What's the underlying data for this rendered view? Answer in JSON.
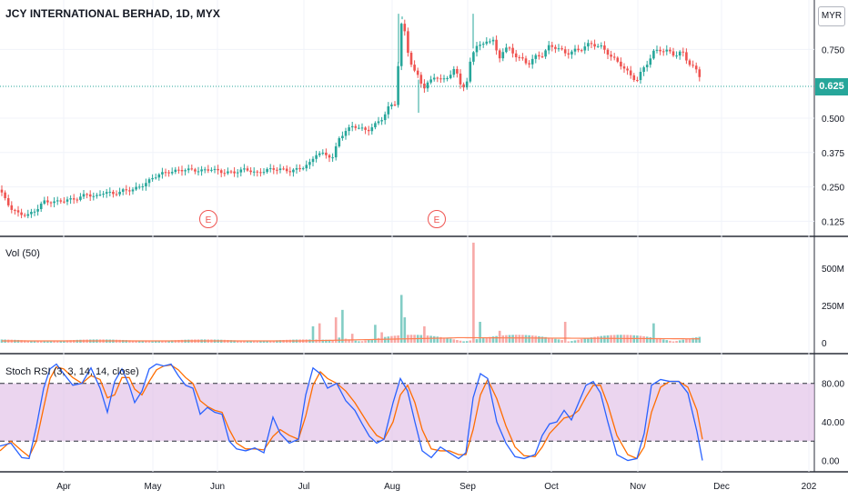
{
  "header": {
    "title": "JCY INTERNATIONAL BERHAD, 1D, MYX",
    "currency": "MYR"
  },
  "last_price_label": "0.625",
  "volume_label": "Vol (50)",
  "stoch_label": "Stoch RSI (3, 3, 14, 14, close)",
  "earnings_marker": "E",
  "colors": {
    "up": "#26a69a",
    "down": "#ef5350",
    "vol_ma": "#ff7f50",
    "k_line": "#2962ff",
    "d_line": "#ff6d00",
    "rsi_band": "#e1bee7"
  },
  "chart_data": [
    {
      "type": "candlestick",
      "title": "JCY INTERNATIONAL BERHAD, 1D, MYX",
      "x_ticks": [
        "Apr",
        "May",
        "Jun",
        "Jul",
        "Aug",
        "Sep",
        "Oct",
        "Nov",
        "Dec",
        "202"
      ],
      "y_ticks": [
        "0.125",
        "0.250",
        "0.375",
        "0.500",
        "0.750"
      ],
      "ylim": [
        0.09,
        0.91
      ],
      "last_price": 0.625,
      "earnings_markers": [
        "late May",
        "mid Aug"
      ],
      "close_path": [
        [
          0,
          0.24
        ],
        [
          5,
          0.21
        ],
        [
          12,
          0.17
        ],
        [
          20,
          0.15
        ],
        [
          30,
          0.14
        ],
        [
          40,
          0.16
        ],
        [
          48,
          0.19
        ],
        [
          60,
          0.19
        ],
        [
          72,
          0.2
        ],
        [
          85,
          0.21
        ],
        [
          95,
          0.23
        ],
        [
          105,
          0.22
        ],
        [
          115,
          0.24
        ],
        [
          125,
          0.23
        ],
        [
          135,
          0.24
        ],
        [
          145,
          0.24
        ],
        [
          155,
          0.25
        ],
        [
          165,
          0.27
        ],
        [
          175,
          0.29
        ],
        [
          190,
          0.3
        ],
        [
          205,
          0.31
        ],
        [
          220,
          0.31
        ],
        [
          232,
          0.32
        ],
        [
          245,
          0.31
        ],
        [
          258,
          0.31
        ],
        [
          270,
          0.32
        ],
        [
          282,
          0.3
        ],
        [
          294,
          0.31
        ],
        [
          306,
          0.31
        ],
        [
          318,
          0.3
        ],
        [
          330,
          0.31
        ],
        [
          340,
          0.33
        ],
        [
          348,
          0.37
        ],
        [
          356,
          0.37
        ],
        [
          366,
          0.36
        ],
        [
          372,
          0.43
        ],
        [
          380,
          0.46
        ],
        [
          388,
          0.48
        ],
        [
          396,
          0.47
        ],
        [
          404,
          0.46
        ],
        [
          412,
          0.48
        ],
        [
          420,
          0.5
        ],
        [
          428,
          0.54
        ],
        [
          434,
          0.55
        ],
        [
          438,
          0.7
        ],
        [
          442,
          0.86
        ],
        [
          448,
          0.74
        ],
        [
          454,
          0.66
        ],
        [
          460,
          0.64
        ],
        [
          466,
          0.6
        ],
        [
          472,
          0.62
        ],
        [
          478,
          0.65
        ],
        [
          486,
          0.63
        ],
        [
          494,
          0.66
        ],
        [
          500,
          0.68
        ],
        [
          508,
          0.62
        ],
        [
          514,
          0.64
        ],
        [
          518,
          0.74
        ],
        [
          524,
          0.78
        ],
        [
          530,
          0.77
        ],
        [
          536,
          0.8
        ],
        [
          542,
          0.79
        ],
        [
          548,
          0.72
        ],
        [
          554,
          0.76
        ],
        [
          560,
          0.75
        ],
        [
          566,
          0.73
        ],
        [
          572,
          0.71
        ],
        [
          580,
          0.69
        ],
        [
          588,
          0.71
        ],
        [
          596,
          0.72
        ],
        [
          604,
          0.75
        ],
        [
          612,
          0.75
        ],
        [
          620,
          0.73
        ],
        [
          628,
          0.74
        ],
        [
          636,
          0.75
        ],
        [
          644,
          0.77
        ],
        [
          652,
          0.78
        ],
        [
          660,
          0.77
        ],
        [
          668,
          0.75
        ],
        [
          676,
          0.72
        ],
        [
          684,
          0.7
        ],
        [
          692,
          0.66
        ],
        [
          700,
          0.64
        ],
        [
          706,
          0.67
        ],
        [
          712,
          0.7
        ],
        [
          718,
          0.73
        ],
        [
          726,
          0.74
        ],
        [
          734,
          0.73
        ],
        [
          742,
          0.72
        ],
        [
          750,
          0.73
        ],
        [
          756,
          0.7
        ],
        [
          762,
          0.68
        ],
        [
          768,
          0.66
        ],
        [
          772,
          0.63
        ]
      ]
    },
    {
      "type": "bar",
      "title": "Vol (50)",
      "y_ticks": [
        "0",
        "250M",
        "500M"
      ],
      "ylim": [
        0,
        700
      ],
      "unit": "M",
      "moving_average": 50,
      "spikes": [
        [
          345,
          110
        ],
        [
          352,
          130
        ],
        [
          370,
          170
        ],
        [
          376,
          220
        ],
        [
          386,
          60
        ],
        [
          412,
          120
        ],
        [
          418,
          70
        ],
        [
          440,
          320
        ],
        [
          446,
          170
        ],
        [
          466,
          110
        ],
        [
          520,
          670
        ],
        [
          526,
          140
        ],
        [
          548,
          80
        ],
        [
          622,
          140
        ],
        [
          720,
          130
        ]
      ]
    },
    {
      "type": "line",
      "title": "Stoch RSI (3, 3, 14, 14, close)",
      "y_ticks": [
        "0.00",
        "40.00",
        "80.00"
      ],
      "ylim": [
        -8,
        108
      ],
      "band": [
        20,
        80
      ],
      "k_path": [
        [
          0,
          15
        ],
        [
          12,
          18
        ],
        [
          24,
          3
        ],
        [
          32,
          2
        ],
        [
          40,
          35
        ],
        [
          48,
          75
        ],
        [
          55,
          95
        ],
        [
          62,
          100
        ],
        [
          70,
          90
        ],
        [
          80,
          78
        ],
        [
          90,
          80
        ],
        [
          100,
          96
        ],
        [
          110,
          75
        ],
        [
          118,
          50
        ],
        [
          126,
          82
        ],
        [
          134,
          95
        ],
        [
          142,
          78
        ],
        [
          148,
          60
        ],
        [
          156,
          72
        ],
        [
          164,
          95
        ],
        [
          172,
          100
        ],
        [
          180,
          98
        ],
        [
          188,
          100
        ],
        [
          196,
          88
        ],
        [
          204,
          78
        ],
        [
          212,
          75
        ],
        [
          220,
          48
        ],
        [
          228,
          55
        ],
        [
          236,
          50
        ],
        [
          244,
          48
        ],
        [
          252,
          20
        ],
        [
          260,
          12
        ],
        [
          270,
          10
        ],
        [
          280,
          13
        ],
        [
          290,
          8
        ],
        [
          300,
          45
        ],
        [
          308,
          28
        ],
        [
          318,
          18
        ],
        [
          328,
          22
        ],
        [
          336,
          68
        ],
        [
          344,
          96
        ],
        [
          352,
          90
        ],
        [
          360,
          75
        ],
        [
          370,
          80
        ],
        [
          380,
          62
        ],
        [
          390,
          52
        ],
        [
          398,
          38
        ],
        [
          406,
          25
        ],
        [
          414,
          18
        ],
        [
          422,
          22
        ],
        [
          432,
          60
        ],
        [
          440,
          85
        ],
        [
          448,
          72
        ],
        [
          456,
          40
        ],
        [
          464,
          10
        ],
        [
          474,
          3
        ],
        [
          484,
          14
        ],
        [
          494,
          8
        ],
        [
          504,
          2
        ],
        [
          512,
          8
        ],
        [
          520,
          65
        ],
        [
          528,
          90
        ],
        [
          536,
          85
        ],
        [
          546,
          40
        ],
        [
          556,
          18
        ],
        [
          566,
          4
        ],
        [
          576,
          2
        ],
        [
          588,
          6
        ],
        [
          596,
          26
        ],
        [
          604,
          38
        ],
        [
          612,
          40
        ],
        [
          620,
          52
        ],
        [
          628,
          42
        ],
        [
          636,
          60
        ],
        [
          644,
          78
        ],
        [
          652,
          82
        ],
        [
          660,
          70
        ],
        [
          668,
          40
        ],
        [
          678,
          6
        ],
        [
          690,
          0
        ],
        [
          700,
          2
        ],
        [
          708,
          28
        ],
        [
          716,
          78
        ],
        [
          726,
          84
        ],
        [
          736,
          82
        ],
        [
          746,
          82
        ],
        [
          756,
          70
        ],
        [
          766,
          30
        ],
        [
          772,
          0
        ]
      ],
      "d_path": [
        [
          0,
          10
        ],
        [
          12,
          20
        ],
        [
          24,
          10
        ],
        [
          32,
          4
        ],
        [
          40,
          20
        ],
        [
          48,
          55
        ],
        [
          55,
          85
        ],
        [
          62,
          97
        ],
        [
          70,
          95
        ],
        [
          80,
          86
        ],
        [
          90,
          80
        ],
        [
          100,
          88
        ],
        [
          110,
          84
        ],
        [
          118,
          65
        ],
        [
          126,
          68
        ],
        [
          134,
          86
        ],
        [
          142,
          86
        ],
        [
          148,
          74
        ],
        [
          156,
          68
        ],
        [
          164,
          82
        ],
        [
          172,
          94
        ],
        [
          180,
          98
        ],
        [
          188,
          99
        ],
        [
          196,
          94
        ],
        [
          204,
          86
        ],
        [
          212,
          80
        ],
        [
          220,
          62
        ],
        [
          228,
          56
        ],
        [
          236,
          52
        ],
        [
          244,
          50
        ],
        [
          252,
          32
        ],
        [
          260,
          18
        ],
        [
          270,
          12
        ],
        [
          280,
          12
        ],
        [
          290,
          11
        ],
        [
          300,
          25
        ],
        [
          308,
          32
        ],
        [
          318,
          26
        ],
        [
          328,
          22
        ],
        [
          336,
          46
        ],
        [
          344,
          78
        ],
        [
          352,
          92
        ],
        [
          360,
          85
        ],
        [
          370,
          80
        ],
        [
          380,
          72
        ],
        [
          390,
          60
        ],
        [
          398,
          48
        ],
        [
          406,
          36
        ],
        [
          414,
          26
        ],
        [
          422,
          22
        ],
        [
          432,
          40
        ],
        [
          440,
          68
        ],
        [
          448,
          78
        ],
        [
          456,
          60
        ],
        [
          464,
          32
        ],
        [
          474,
          12
        ],
        [
          484,
          10
        ],
        [
          494,
          10
        ],
        [
          504,
          6
        ],
        [
          512,
          6
        ],
        [
          520,
          32
        ],
        [
          528,
          68
        ],
        [
          536,
          84
        ],
        [
          546,
          64
        ],
        [
          556,
          36
        ],
        [
          566,
          14
        ],
        [
          576,
          5
        ],
        [
          588,
          4
        ],
        [
          596,
          14
        ],
        [
          604,
          28
        ],
        [
          612,
          36
        ],
        [
          620,
          44
        ],
        [
          628,
          46
        ],
        [
          636,
          52
        ],
        [
          644,
          66
        ],
        [
          652,
          78
        ],
        [
          660,
          78
        ],
        [
          668,
          58
        ],
        [
          678,
          26
        ],
        [
          690,
          6
        ],
        [
          700,
          2
        ],
        [
          708,
          14
        ],
        [
          716,
          50
        ],
        [
          726,
          76
        ],
        [
          736,
          82
        ],
        [
          746,
          82
        ],
        [
          756,
          76
        ],
        [
          766,
          52
        ],
        [
          772,
          22
        ]
      ]
    }
  ]
}
